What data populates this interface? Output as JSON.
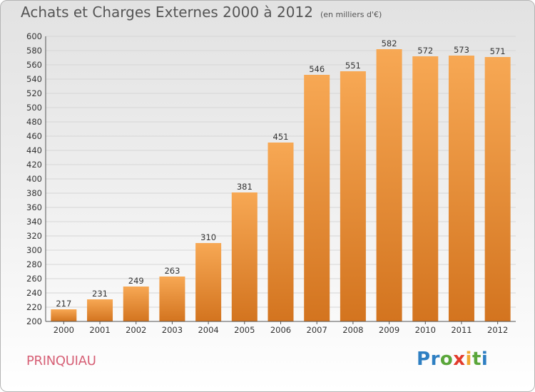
{
  "title": "Achats et Charges Externes 2000 à 2012",
  "subtitle": "(en milliers d'€)",
  "town": "PRINQUIAU",
  "logo": {
    "text": "Proxiti",
    "letters": [
      "P",
      "r",
      "o",
      "x",
      "i",
      "t",
      "i"
    ],
    "colors": [
      "#2e7fc2",
      "#2e7fc2",
      "#5aa63a",
      "#e23b2c",
      "#f0a830",
      "#5aa63a",
      "#2e7fc2"
    ]
  },
  "colors": {
    "bar_light": "#f7a854",
    "bar_dark": "#d3741f",
    "grid": "#d6d6d6"
  },
  "chart_data": {
    "type": "bar",
    "title": "Achats et Charges Externes 2000 à 2012",
    "subtitle": "(en milliers d'€)",
    "xlabel": "",
    "ylabel": "",
    "categories": [
      "2000",
      "2001",
      "2002",
      "2003",
      "2004",
      "2005",
      "2006",
      "2007",
      "2008",
      "2009",
      "2010",
      "2011",
      "2012"
    ],
    "values": [
      217,
      231,
      249,
      263,
      310,
      381,
      451,
      546,
      551,
      582,
      572,
      573,
      571
    ],
    "ylim": [
      200,
      600
    ],
    "yticks": [
      200,
      220,
      240,
      260,
      280,
      300,
      320,
      340,
      360,
      380,
      400,
      420,
      440,
      460,
      480,
      500,
      520,
      540,
      560,
      580,
      600
    ],
    "grid": true
  }
}
